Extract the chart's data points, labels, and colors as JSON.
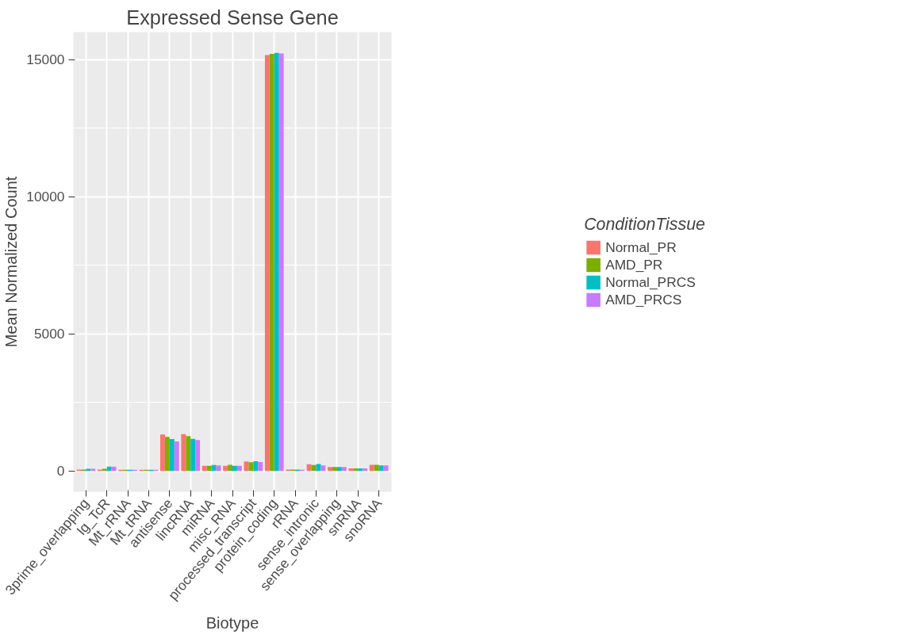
{
  "chart_data": {
    "type": "bar",
    "title": "Expressed Sense Gene",
    "xlabel": "Biotype",
    "ylabel": "Mean Normalized Count",
    "legend_title": "ConditionTissue",
    "categories": [
      "3prime_overlapping",
      "Ig_TcR",
      "Mt_rRNA",
      "Mt_tRNA",
      "antisense",
      "lincRNA",
      "miRNA",
      "misc_RNA",
      "processed_transcript",
      "protein_coding",
      "rRNA",
      "sense_intronic",
      "sense_overlapping",
      "snRNA",
      "snoRNA"
    ],
    "series": [
      {
        "name": "Normal_PR",
        "color": "#f8766d",
        "values": [
          50,
          50,
          40,
          40,
          1330,
          1345,
          185,
          185,
          345,
          15175,
          50,
          245,
          140,
          90,
          225
        ]
      },
      {
        "name": "AMD_PR",
        "color": "#7cae00",
        "values": [
          50,
          80,
          40,
          40,
          1245,
          1270,
          185,
          225,
          315,
          15215,
          50,
          215,
          140,
          90,
          225
        ]
      },
      {
        "name": "Normal_PRCS",
        "color": "#00bfc4",
        "values": [
          80,
          155,
          40,
          40,
          1160,
          1170,
          215,
          185,
          355,
          15250,
          50,
          255,
          140,
          90,
          200
        ]
      },
      {
        "name": "AMD_PRCS",
        "color": "#c77cff",
        "values": [
          80,
          155,
          40,
          40,
          1075,
          1130,
          200,
          185,
          325,
          15230,
          45,
          200,
          140,
          90,
          200
        ]
      }
    ],
    "ylim": [
      -760,
      16010
    ],
    "yticks": [
      0,
      5000,
      10000,
      15000
    ],
    "grid": true,
    "legend": "right"
  }
}
